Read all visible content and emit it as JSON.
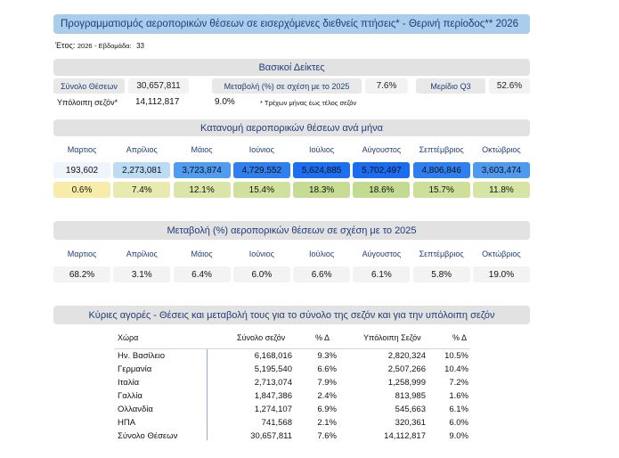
{
  "title": "Προγραμματισμός αεροπορικών θέσεων σε εισερχόμενες διεθνείς πτήσεις* - Θερινή περίοδος** 2026",
  "year_label": "Έτος:",
  "year_value": "2026",
  "week_label": "- Εβδομάδα:",
  "week_value": "33",
  "kpi": {
    "header": "Βασικοί Δείκτες",
    "total_seats_label": "Σύνολο Θέσεων",
    "total_seats_value": "30,657,811",
    "change_label": "Μεταβολή (%) σε σχέση με το 2025",
    "change_value": "7.6%",
    "share_label": "Μερίδιο Q3",
    "share_value": "52.6%",
    "remaining_label": "Υπόλοιπη σεζόν*",
    "remaining_value": "14,112,817",
    "remaining_change": "9.0%",
    "footnote": "* Τρέχων μήνας έως τέλος σεζόν"
  },
  "monthly": {
    "header": "Κατανομή αεροπορικών θέσεων ανά μήνα",
    "months": [
      "Μαρτιος",
      "Απρίλιος",
      "Μάιος",
      "Ιούνιος",
      "Ιούλιος",
      "Αύγουστος",
      "Σεπτέμβριος",
      "Οκτώβριος"
    ],
    "seats": [
      "193,602",
      "2,273,081",
      "3,723,874",
      "4,729,552",
      "5,624,885",
      "5,702,497",
      "4,806,846",
      "3,603,474"
    ],
    "seat_colors": [
      "#eef5fd",
      "#bcdcf6",
      "#4f9cf0",
      "#2f80ee",
      "#1b6ff0",
      "#1a6cf0",
      "#2e7ff0",
      "#4d9af0"
    ],
    "shares": [
      "0.6%",
      "7.4%",
      "12.1%",
      "15.4%",
      "18.3%",
      "18.6%",
      "15.7%",
      "11.8%"
    ],
    "share_colors": [
      "#f7ecaa",
      "#e8eab0",
      "#d9e6a8",
      "#cfe19c",
      "#c5dc92",
      "#c3db90",
      "#cde09a",
      "#d6e4a4"
    ]
  },
  "change": {
    "header": "Μεταβολή (%) αεροπορικών θέσεων σε σχέση με το 2025",
    "months": [
      "Μαρτιος",
      "Απρίλιος",
      "Μάιος",
      "Ιούνιος",
      "Ιούλιος",
      "Αύγουστος",
      "Σεπτέμβριος",
      "Οκτώβριος"
    ],
    "values": [
      "68.2%",
      "3.1%",
      "6.4%",
      "6.0%",
      "6.6%",
      "6.1%",
      "5.8%",
      "19.0%"
    ]
  },
  "markets": {
    "header": "Κύριες αγορές - Θέσεις και μεταβολή τους για το σύνολο της σεζόν και για την υπόλοιπη σεζόν",
    "columns": [
      "Χώρα",
      "Σύνολο σεζόν",
      "% Δ",
      "Υπόλοιπη Σεζόν",
      "% Δ"
    ],
    "rows": [
      [
        "Ην. Βασίλειο",
        "6,168,016",
        "9.3%",
        "2,820,324",
        "10.5%"
      ],
      [
        "Γερμανία",
        "5,195,540",
        "6.6%",
        "2,507,266",
        "10.4%"
      ],
      [
        "Ιταλία",
        "2,713,074",
        "7.9%",
        "1,258,999",
        "7.2%"
      ],
      [
        "Γαλλία",
        "1,847,386",
        "2.4%",
        "813,985",
        "1.6%"
      ],
      [
        "Ολλανδία",
        "1,274,107",
        "6.9%",
        "545,663",
        "6.1%"
      ],
      [
        "ΗΠΑ",
        "741,568",
        "2.1%",
        "320,361",
        "6.0%"
      ],
      [
        "Σύνολο Θέσεων",
        "30,657,811",
        "7.6%",
        "14,112,817",
        "9.0%"
      ]
    ]
  }
}
